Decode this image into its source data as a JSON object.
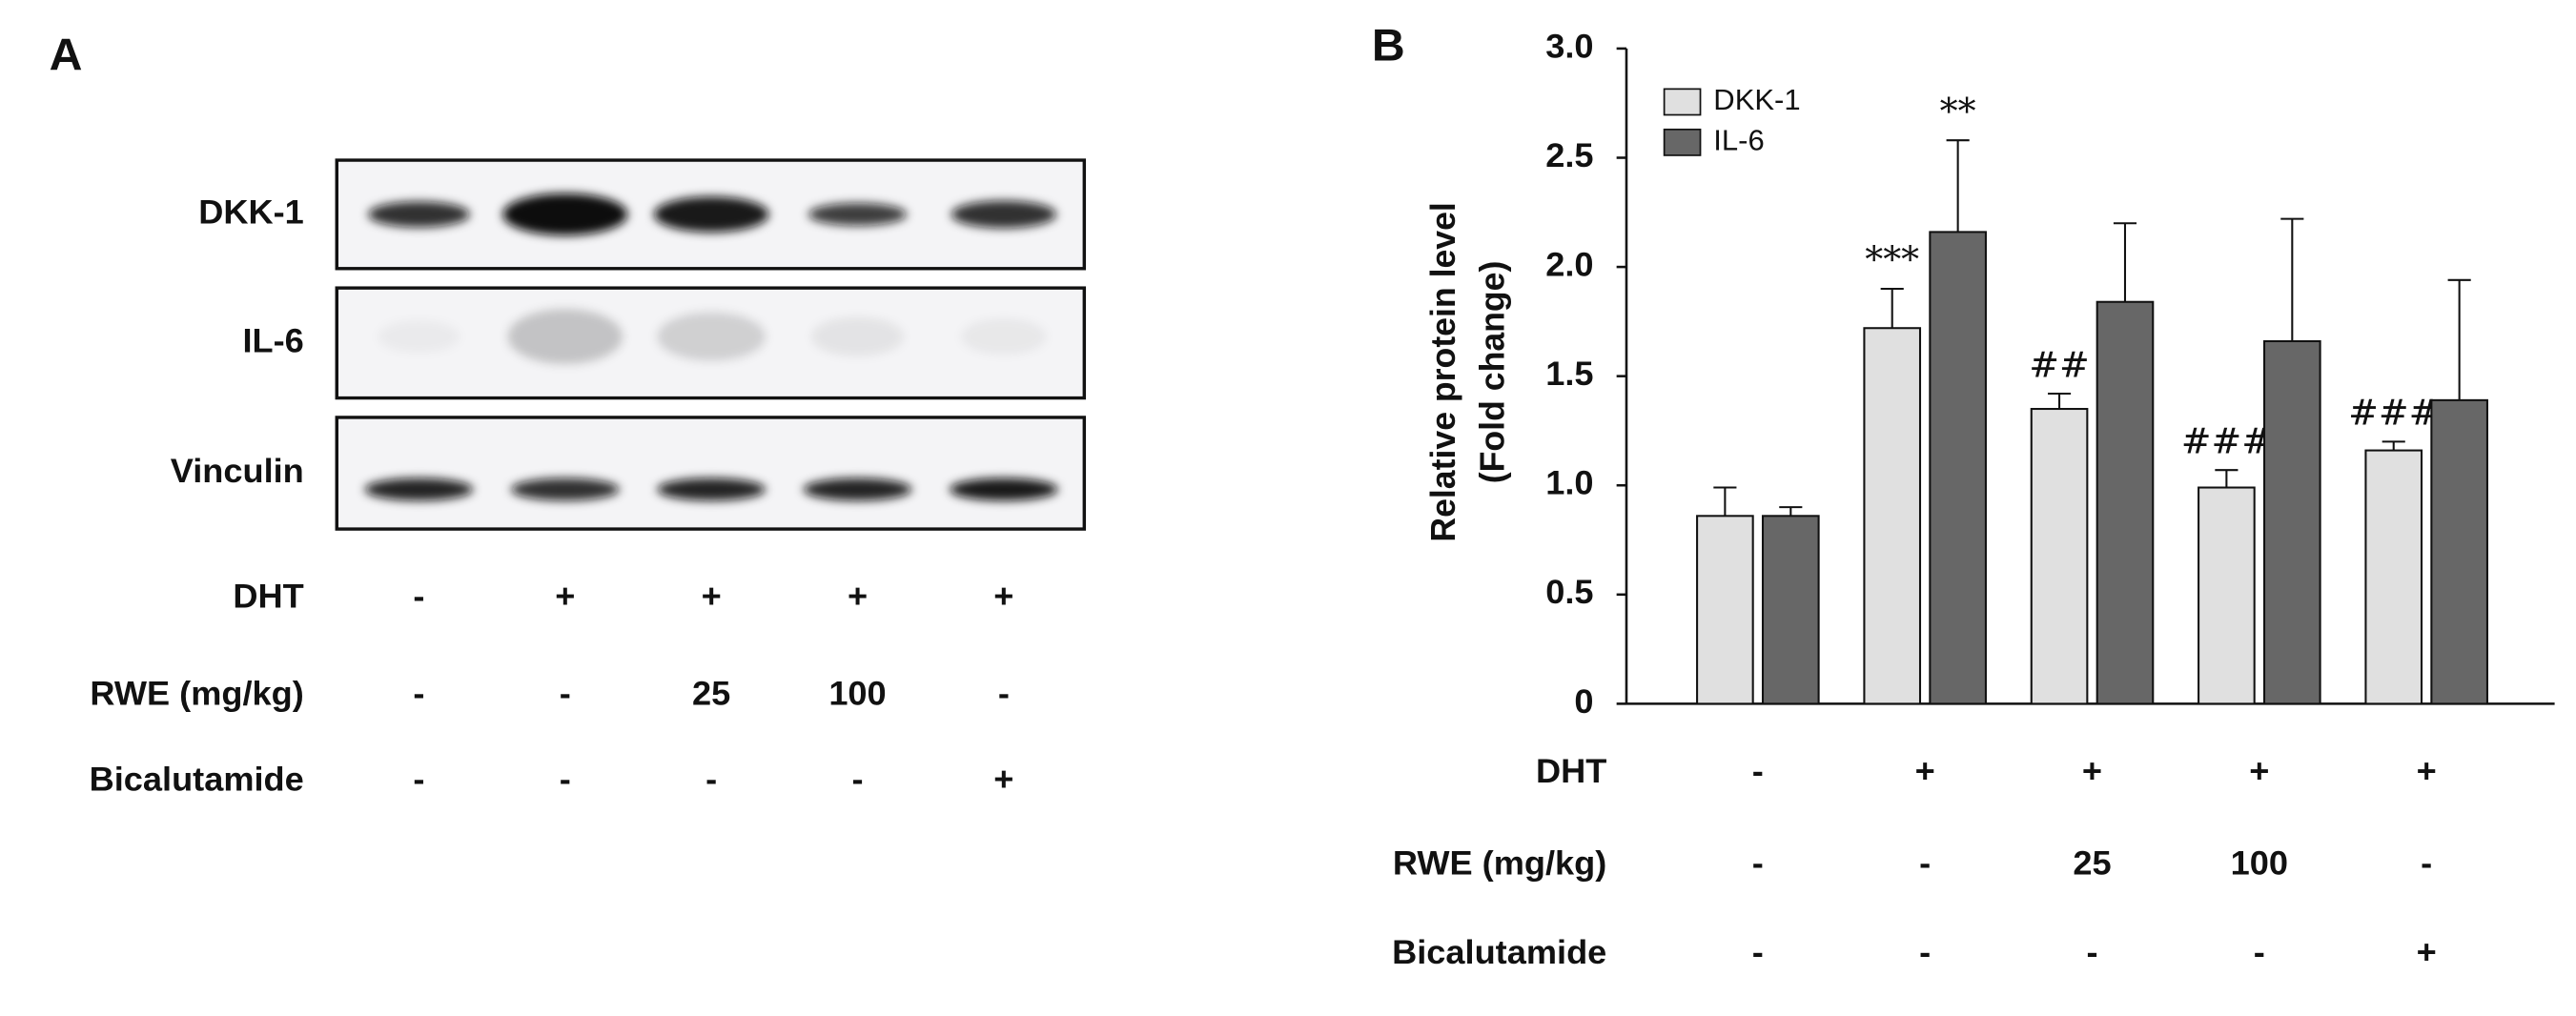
{
  "panel_a": {
    "label": "A",
    "blots": [
      "DKK-1",
      "IL-6",
      "Vinculin"
    ],
    "treatments": [
      {
        "label": "DHT",
        "values": [
          "-",
          "+",
          "+",
          "+",
          "+"
        ]
      },
      {
        "label": "RWE (mg/kg)",
        "values": [
          "-",
          "-",
          "25",
          "100",
          "-"
        ]
      },
      {
        "label": "Bicalutamide",
        "values": [
          "-",
          "-",
          "-",
          "-",
          "+"
        ]
      }
    ]
  },
  "chart_data": {
    "type": "bar",
    "panel_label": "B",
    "y_label": [
      "Relative protein level",
      "(Fold change)"
    ],
    "ylim": [
      0,
      3
    ],
    "yticks": [
      0,
      0.5,
      {
        "value": 1,
        "label": "1.0"
      },
      1.5,
      {
        "value": 2,
        "label": "2.0"
      },
      2.5,
      {
        "value": 3,
        "label": "3.0"
      }
    ],
    "legend": "upper left",
    "series": [
      {
        "name": "DKK-1",
        "color": "#e0e0e0",
        "values": [
          0.86,
          1.72,
          1.35,
          0.99,
          1.16
        ],
        "errors": [
          0.13,
          0.18,
          0.07,
          0.08,
          0.04
        ],
        "labels": [
          null,
          "***",
          "##",
          "###",
          "###"
        ]
      },
      {
        "name": "IL-6",
        "color": "#676767",
        "values": [
          0.86,
          2.16,
          1.84,
          1.66,
          1.39
        ],
        "errors": [
          0.04,
          0.42,
          0.36,
          0.56,
          0.55
        ],
        "labels": [
          null,
          "**",
          null,
          null,
          null
        ]
      }
    ],
    "treatments": [
      {
        "label": "DHT",
        "values": [
          "-",
          "+",
          "+",
          "+",
          "+"
        ]
      },
      {
        "label": "RWE (mg/kg)",
        "values": [
          "-",
          "-",
          "25",
          "100",
          "-"
        ]
      },
      {
        "label": "Bicalutamide",
        "values": [
          "-",
          "-",
          "-",
          "-",
          "+"
        ]
      }
    ]
  }
}
